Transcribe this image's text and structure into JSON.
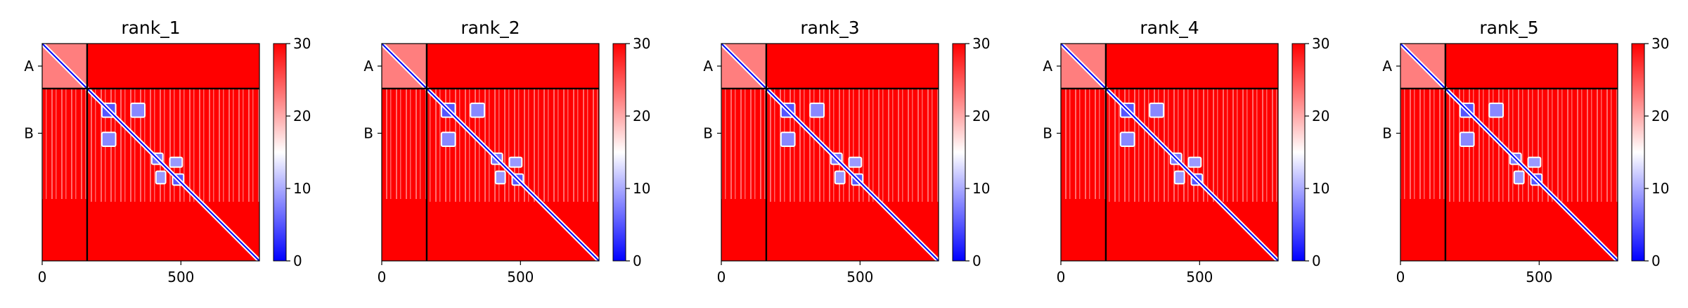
{
  "chart_data": {
    "type": "heatmap",
    "layout": "1x5 panels, each with its own colorbar",
    "colormap": "bwr",
    "colormap_stops": [
      "#0000ff",
      "#ffffff",
      "#ff0000"
    ],
    "value_range": [
      0,
      30
    ],
    "colorbar_ticks": [
      "0",
      "10",
      "20",
      "30"
    ],
    "x_range": [
      0,
      783
    ],
    "x_ticks": [
      "0",
      "500"
    ],
    "x_tick_values": [
      0,
      500
    ],
    "y_range": [
      783,
      0
    ],
    "chain_boundary": 162,
    "chain_labels": [
      "A",
      "B"
    ],
    "chain_label_positions": [
      81,
      323
    ],
    "panels": [
      {
        "title": "rank_1",
        "blocks": [
          {
            "x": [
              215,
              265
            ],
            "y": [
              215,
              265
            ],
            "value": 5
          },
          {
            "x": [
              320,
              370
            ],
            "y": [
              215,
              265
            ],
            "value": 8
          },
          {
            "x": [
              215,
              265
            ],
            "y": [
              320,
              370
            ],
            "value": 8
          },
          {
            "x": [
              395,
              435
            ],
            "y": [
              395,
              435
            ],
            "value": 7
          },
          {
            "x": [
              460,
              505
            ],
            "y": [
              410,
              445
            ],
            "value": 9
          },
          {
            "x": [
              410,
              445
            ],
            "y": [
              460,
              505
            ],
            "value": 9
          },
          {
            "x": [
              470,
              510
            ],
            "y": [
              470,
              510
            ],
            "value": 5
          }
        ]
      },
      {
        "title": "rank_2",
        "blocks": [
          {
            "x": [
              215,
              265
            ],
            "y": [
              215,
              265
            ],
            "value": 5
          },
          {
            "x": [
              320,
              370
            ],
            "y": [
              215,
              265
            ],
            "value": 8
          },
          {
            "x": [
              215,
              265
            ],
            "y": [
              320,
              370
            ],
            "value": 8
          },
          {
            "x": [
              395,
              435
            ],
            "y": [
              395,
              435
            ],
            "value": 7
          },
          {
            "x": [
              460,
              505
            ],
            "y": [
              410,
              445
            ],
            "value": 9
          },
          {
            "x": [
              410,
              445
            ],
            "y": [
              460,
              505
            ],
            "value": 9
          },
          {
            "x": [
              470,
              510
            ],
            "y": [
              470,
              510
            ],
            "value": 5
          }
        ]
      },
      {
        "title": "rank_3",
        "blocks": [
          {
            "x": [
              215,
              265
            ],
            "y": [
              215,
              265
            ],
            "value": 5
          },
          {
            "x": [
              320,
              370
            ],
            "y": [
              215,
              265
            ],
            "value": 8
          },
          {
            "x": [
              215,
              265
            ],
            "y": [
              320,
              370
            ],
            "value": 8
          },
          {
            "x": [
              395,
              435
            ],
            "y": [
              395,
              435
            ],
            "value": 7
          },
          {
            "x": [
              460,
              505
            ],
            "y": [
              410,
              445
            ],
            "value": 9
          },
          {
            "x": [
              410,
              445
            ],
            "y": [
              460,
              505
            ],
            "value": 9
          },
          {
            "x": [
              470,
              510
            ],
            "y": [
              470,
              510
            ],
            "value": 5
          }
        ]
      },
      {
        "title": "rank_4",
        "blocks": [
          {
            "x": [
              215,
              265
            ],
            "y": [
              215,
              265
            ],
            "value": 5
          },
          {
            "x": [
              320,
              370
            ],
            "y": [
              215,
              265
            ],
            "value": 8
          },
          {
            "x": [
              215,
              265
            ],
            "y": [
              320,
              370
            ],
            "value": 8
          },
          {
            "x": [
              395,
              435
            ],
            "y": [
              395,
              435
            ],
            "value": 7
          },
          {
            "x": [
              460,
              505
            ],
            "y": [
              410,
              445
            ],
            "value": 9
          },
          {
            "x": [
              410,
              445
            ],
            "y": [
              460,
              505
            ],
            "value": 9
          },
          {
            "x": [
              470,
              510
            ],
            "y": [
              470,
              510
            ],
            "value": 5
          }
        ]
      },
      {
        "title": "rank_5",
        "blocks": [
          {
            "x": [
              215,
              265
            ],
            "y": [
              215,
              265
            ],
            "value": 5
          },
          {
            "x": [
              320,
              370
            ],
            "y": [
              215,
              265
            ],
            "value": 8
          },
          {
            "x": [
              215,
              265
            ],
            "y": [
              320,
              370
            ],
            "value": 8
          },
          {
            "x": [
              395,
              435
            ],
            "y": [
              395,
              435
            ],
            "value": 7
          },
          {
            "x": [
              460,
              505
            ],
            "y": [
              410,
              445
            ],
            "value": 9
          },
          {
            "x": [
              410,
              445
            ],
            "y": [
              460,
              505
            ],
            "value": 9
          },
          {
            "x": [
              470,
              510
            ],
            "y": [
              470,
              510
            ],
            "value": 5
          }
        ]
      }
    ]
  }
}
